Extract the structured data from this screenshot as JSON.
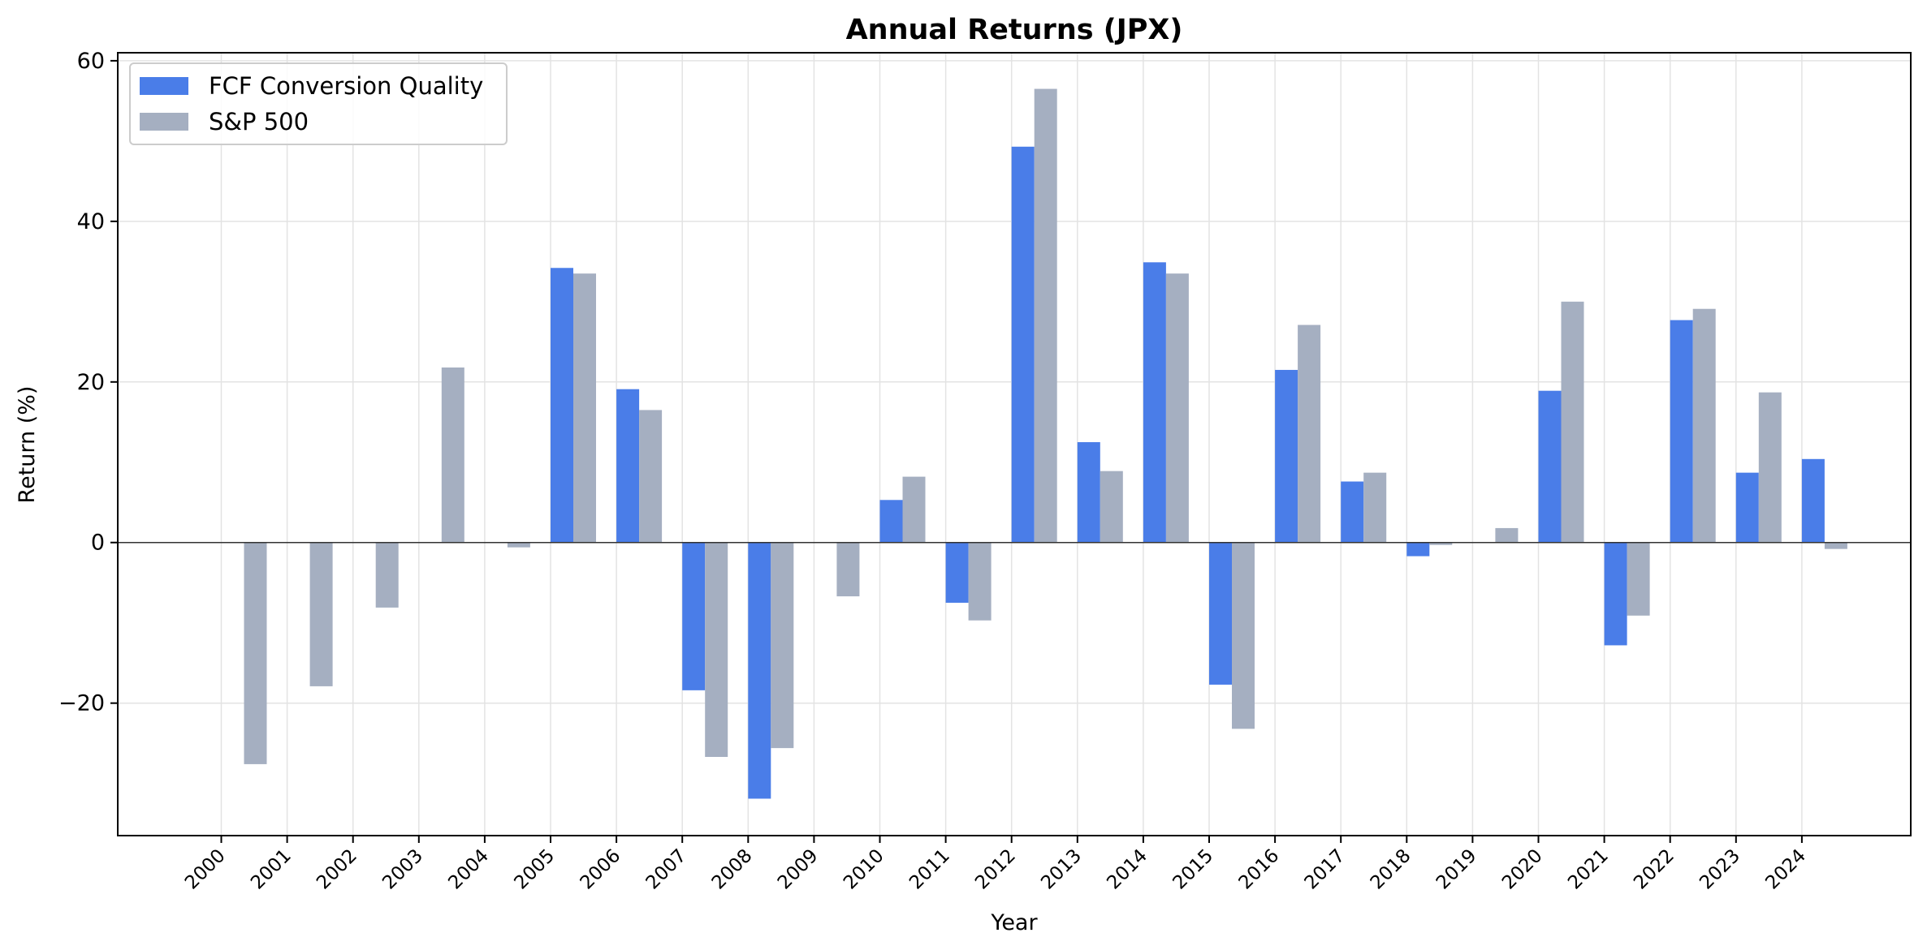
{
  "chart_data": {
    "type": "bar",
    "title": "Annual Returns (JPX)",
    "xlabel": "Year",
    "ylabel": "Return (%)",
    "ylim": [
      -36.5,
      61
    ],
    "yticks": [
      -20,
      0,
      20,
      40,
      60
    ],
    "ytick_labels": [
      "−20",
      "0",
      "20",
      "40",
      "60"
    ],
    "grid": true,
    "legend_position": "top-left",
    "categories": [
      "2000",
      "2001",
      "2002",
      "2003",
      "2004",
      "2005",
      "2006",
      "2007",
      "2008",
      "2009",
      "2010",
      "2011",
      "2012",
      "2013",
      "2014",
      "2015",
      "2016",
      "2017",
      "2018",
      "2019",
      "2020",
      "2021",
      "2022",
      "2023",
      "2024"
    ],
    "series": [
      {
        "name": "FCF Conversion Quality",
        "color": "#4a7de8",
        "values": [
          0,
          0,
          0,
          0,
          0,
          34.2,
          19.1,
          -18.4,
          -31.9,
          0,
          5.3,
          -7.5,
          49.3,
          12.5,
          34.9,
          -17.7,
          21.5,
          7.6,
          -1.7,
          0,
          18.9,
          -12.8,
          27.7,
          8.7,
          10.4
        ]
      },
      {
        "name": "S&P 500",
        "color": "#a5afc1",
        "values": [
          -27.6,
          -17.9,
          -8.1,
          21.8,
          -0.6,
          33.5,
          16.5,
          -26.7,
          -25.6,
          -6.7,
          8.2,
          -9.7,
          56.5,
          8.9,
          33.5,
          -23.2,
          27.1,
          8.7,
          -0.3,
          1.8,
          30.0,
          -9.1,
          29.1,
          18.7,
          -0.8
        ]
      }
    ]
  }
}
